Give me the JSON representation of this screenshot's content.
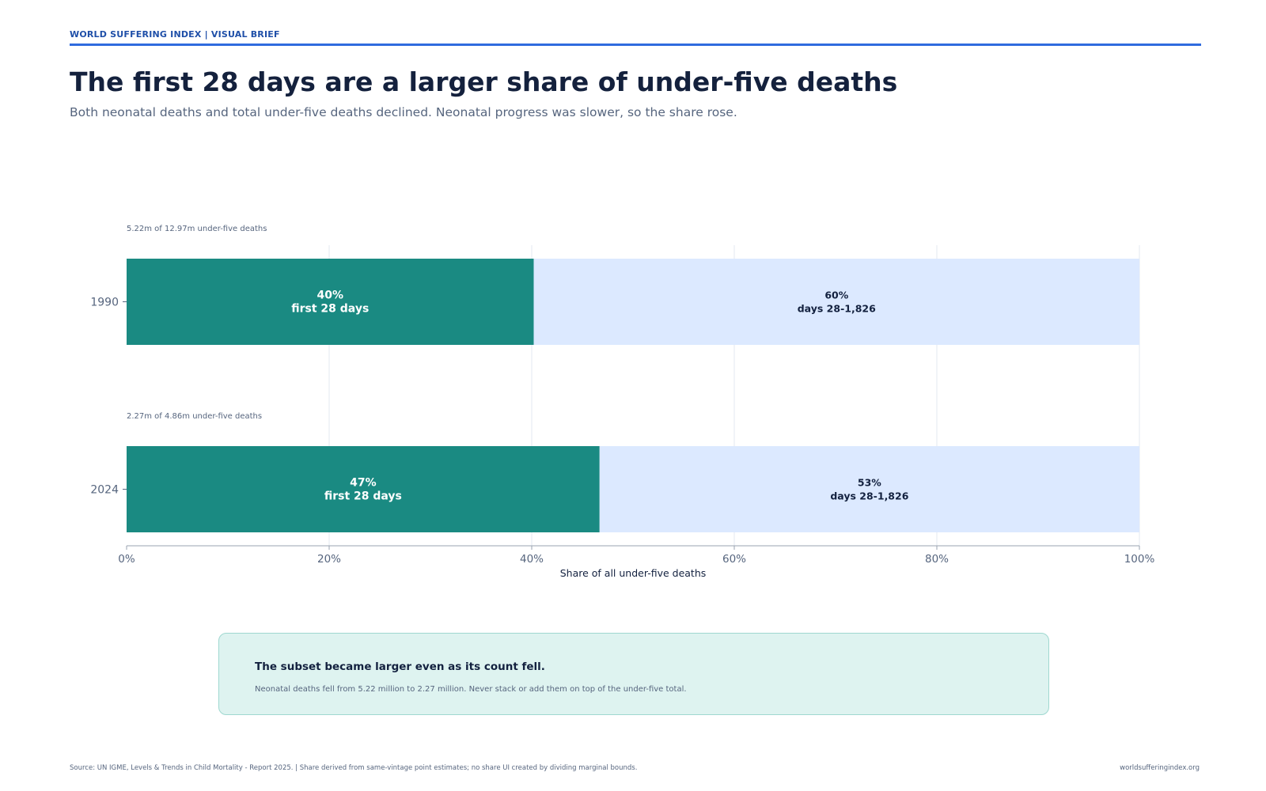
{
  "header": {
    "kicker": "WORLD SUFFERING INDEX  |  VISUAL BRIEF",
    "title": "The first 28 days are a larger share of under-five deaths",
    "subtitle": "Both neonatal deaths and total under-five deaths declined. Neonatal progress was slower, so the share rose."
  },
  "chart_data": {
    "type": "bar",
    "orientation": "horizontal",
    "stacked": true,
    "categories": [
      "1990",
      "2024"
    ],
    "series": [
      {
        "name": "first 28 days",
        "values": [
          40.2,
          46.7
        ],
        "labels": [
          "40%",
          "47%"
        ],
        "color": "#1a8a82",
        "label_color": "#ffffff"
      },
      {
        "name": "days 28-1,826",
        "values": [
          59.8,
          53.3
        ],
        "labels": [
          "60%",
          "53%"
        ],
        "color": "#dce9ff",
        "label_color": "#13213f"
      }
    ],
    "annotations": [
      "5.22m of 12.97m under-five deaths",
      "2.27m of 4.86m under-five deaths"
    ],
    "xlabel": "Share of all under-five deaths",
    "xlim": [
      0,
      100
    ],
    "xticks": [
      0,
      20,
      40,
      60,
      80,
      100
    ],
    "xtick_labels": [
      "0%",
      "20%",
      "40%",
      "60%",
      "80%",
      "100%"
    ],
    "grid": true
  },
  "callout": {
    "title": "The subset became larger even as its count fell.",
    "text": "Neonatal deaths fell from 5.22 million to 2.27 million. Never stack or add them on top of the under-five total."
  },
  "footer": {
    "source": "Source: UN IGME, Levels & Trends in Child Mortality - Report 2025.  |  Share derived from same-vintage point estimates; no share UI created by dividing marginal bounds.",
    "site": "worldsufferingindex.org"
  },
  "colors": {
    "accent": "#2f6bde",
    "neonatal": "#1a8a82",
    "remainder": "#dce9ff",
    "callout_bg": "#def3f0"
  }
}
